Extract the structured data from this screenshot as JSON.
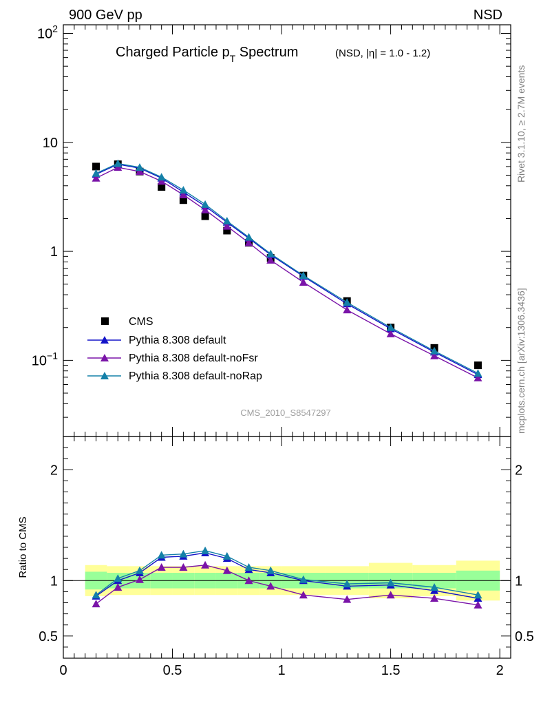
{
  "header": {
    "left": "900 GeV pp",
    "right": "NSD"
  },
  "side_labels": {
    "top": "Rivet 3.1.10, ≥ 2.7M events",
    "bottom": "mcplots.cern.ch [arXiv:1306.3436]"
  },
  "colors": {
    "cms": "#000000",
    "default": "#1414c8",
    "noFsr": "#7a14a8",
    "noRap": "#1480a8",
    "band_outer": "#ffff99",
    "band_inner": "#99ff99"
  },
  "chart_data": [
    {
      "type": "scatter",
      "title": {
        "main": "Charged Particle p",
        "sub": "T",
        "main2": " Spectrum",
        "suffix": "(NSD, |η| = 1.0 - 1.2)"
      },
      "watermark": "CMS_2010_S8547297",
      "yscale": "log",
      "xlim": [
        0,
        2.05
      ],
      "ylim": [
        0.02,
        120
      ],
      "y_ticks": [
        {
          "value": 0.1,
          "base": "10",
          "exp": "−1"
        },
        {
          "value": 1,
          "base": "1",
          "exp": ""
        },
        {
          "value": 10,
          "base": "10",
          "exp": ""
        },
        {
          "value": 100,
          "base": "10",
          "exp": "2"
        }
      ],
      "legend": [
        "CMS",
        "Pythia 8.308 default",
        "Pythia 8.308 default-noFsr",
        "Pythia 8.308 default-noRap"
      ],
      "legend_position": "bottom-left",
      "series": [
        {
          "name": "CMS",
          "marker": "square",
          "color": "#000000",
          "x": [
            0.15,
            0.25,
            0.35,
            0.45,
            0.55,
            0.65,
            0.75,
            0.85,
            0.95,
            1.1,
            1.3,
            1.5,
            1.7,
            1.9
          ],
          "y": [
            6.0,
            6.3,
            5.4,
            3.9,
            2.95,
            2.1,
            1.55,
            1.2,
            0.87,
            0.6,
            0.35,
            0.2,
            0.13,
            0.09
          ]
        },
        {
          "name": "Pythia 8.308 default",
          "marker": "triangle",
          "color": "#1414c8",
          "x": [
            0.15,
            0.25,
            0.35,
            0.45,
            0.55,
            0.65,
            0.75,
            0.85,
            0.95,
            1.1,
            1.3,
            1.5,
            1.7,
            1.9
          ],
          "y": [
            5.1,
            6.3,
            5.8,
            4.7,
            3.5,
            2.6,
            1.85,
            1.32,
            0.93,
            0.59,
            0.33,
            0.195,
            0.119,
            0.074
          ]
        },
        {
          "name": "Pythia 8.308 default-noFsr",
          "marker": "triangle",
          "color": "#7a14a8",
          "x": [
            0.15,
            0.25,
            0.35,
            0.45,
            0.55,
            0.65,
            0.75,
            0.85,
            0.95,
            1.1,
            1.3,
            1.5,
            1.7,
            1.9
          ],
          "y": [
            4.7,
            5.9,
            5.4,
            4.4,
            3.3,
            2.4,
            1.7,
            1.2,
            0.83,
            0.52,
            0.29,
            0.175,
            0.11,
            0.069
          ]
        },
        {
          "name": "Pythia 8.308 default-noRap",
          "marker": "triangle",
          "color": "#1480a8",
          "x": [
            0.15,
            0.25,
            0.35,
            0.45,
            0.55,
            0.65,
            0.75,
            0.85,
            0.95,
            1.1,
            1.3,
            1.5,
            1.7,
            1.9
          ],
          "y": [
            5.2,
            6.4,
            5.9,
            4.8,
            3.65,
            2.7,
            1.9,
            1.35,
            0.95,
            0.6,
            0.34,
            0.2,
            0.122,
            0.076
          ]
        }
      ]
    },
    {
      "type": "line",
      "ylabel": "Ratio to CMS",
      "xlim": [
        0,
        2.05
      ],
      "ylim": [
        0.3,
        2.3
      ],
      "x_ticks": [
        {
          "value": 0,
          "label": "0"
        },
        {
          "value": 0.5,
          "label": "0.5"
        },
        {
          "value": 1,
          "label": "1"
        },
        {
          "value": 1.5,
          "label": "1.5"
        },
        {
          "value": 2,
          "label": "2"
        }
      ],
      "y_ticks": [
        {
          "value": 0.5,
          "label": "0.5"
        },
        {
          "value": 1,
          "label": "1"
        },
        {
          "value": 2,
          "label": "2"
        }
      ],
      "bands": [
        {
          "x0": 0.1,
          "x1": 0.2,
          "outer": [
            0.86,
            1.14
          ],
          "inner": [
            0.92,
            1.08
          ]
        },
        {
          "x0": 0.2,
          "x1": 0.3,
          "outer": [
            0.87,
            1.13
          ],
          "inner": [
            0.93,
            1.07
          ]
        },
        {
          "x0": 0.3,
          "x1": 0.4,
          "outer": [
            0.87,
            1.13
          ],
          "inner": [
            0.93,
            1.07
          ]
        },
        {
          "x0": 0.4,
          "x1": 0.5,
          "outer": [
            0.87,
            1.13
          ],
          "inner": [
            0.93,
            1.07
          ]
        },
        {
          "x0": 0.5,
          "x1": 0.6,
          "outer": [
            0.87,
            1.13
          ],
          "inner": [
            0.93,
            1.07
          ]
        },
        {
          "x0": 0.6,
          "x1": 0.7,
          "outer": [
            0.87,
            1.13
          ],
          "inner": [
            0.93,
            1.07
          ]
        },
        {
          "x0": 0.7,
          "x1": 0.8,
          "outer": [
            0.87,
            1.13
          ],
          "inner": [
            0.93,
            1.07
          ]
        },
        {
          "x0": 0.8,
          "x1": 0.9,
          "outer": [
            0.87,
            1.13
          ],
          "inner": [
            0.93,
            1.07
          ]
        },
        {
          "x0": 0.9,
          "x1": 1.0,
          "outer": [
            0.87,
            1.13
          ],
          "inner": [
            0.93,
            1.07
          ]
        },
        {
          "x0": 1.0,
          "x1": 1.2,
          "outer": [
            0.87,
            1.13
          ],
          "inner": [
            0.93,
            1.07
          ]
        },
        {
          "x0": 1.2,
          "x1": 1.4,
          "outer": [
            0.87,
            1.13
          ],
          "inner": [
            0.93,
            1.07
          ]
        },
        {
          "x0": 1.4,
          "x1": 1.6,
          "outer": [
            0.84,
            1.16
          ],
          "inner": [
            0.93,
            1.07
          ]
        },
        {
          "x0": 1.6,
          "x1": 1.8,
          "outer": [
            0.86,
            1.14
          ],
          "inner": [
            0.93,
            1.07
          ]
        },
        {
          "x0": 1.8,
          "x1": 2.0,
          "outer": [
            0.82,
            1.18
          ],
          "inner": [
            0.91,
            1.09
          ]
        }
      ],
      "series": [
        {
          "name": "Pythia 8.308 default",
          "color": "#1414c8",
          "x": [
            0.15,
            0.25,
            0.35,
            0.45,
            0.55,
            0.65,
            0.75,
            0.85,
            0.95,
            1.1,
            1.3,
            1.5,
            1.7,
            1.9
          ],
          "y": [
            0.86,
            1.0,
            1.07,
            1.21,
            1.22,
            1.25,
            1.2,
            1.1,
            1.07,
            1.0,
            0.95,
            0.96,
            0.91,
            0.84
          ]
        },
        {
          "name": "Pythia 8.308 default-noFsr",
          "color": "#7a14a8",
          "x": [
            0.15,
            0.25,
            0.35,
            0.45,
            0.55,
            0.65,
            0.75,
            0.85,
            0.95,
            1.1,
            1.3,
            1.5,
            1.7,
            1.9
          ],
          "y": [
            0.79,
            0.94,
            1.01,
            1.12,
            1.12,
            1.14,
            1.09,
            1.0,
            0.95,
            0.87,
            0.83,
            0.87,
            0.84,
            0.78
          ]
        },
        {
          "name": "Pythia 8.308 default-noRap",
          "color": "#1480a8",
          "x": [
            0.15,
            0.25,
            0.35,
            0.45,
            0.55,
            0.65,
            0.75,
            0.85,
            0.95,
            1.1,
            1.3,
            1.5,
            1.7,
            1.9
          ],
          "y": [
            0.87,
            1.02,
            1.09,
            1.23,
            1.24,
            1.27,
            1.22,
            1.12,
            1.09,
            1.01,
            0.97,
            0.98,
            0.94,
            0.87
          ]
        }
      ]
    }
  ]
}
